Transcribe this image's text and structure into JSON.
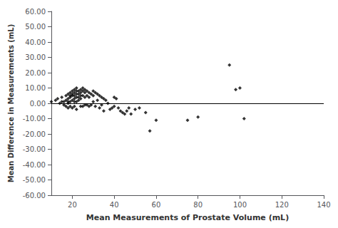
{
  "chart_data": {
    "type": "scatter",
    "xlabel": "Mean Measurements of Prostate Volume (mL)",
    "ylabel": "Mean Difference in Measurements (mL)",
    "x": [
      10,
      12,
      13,
      14,
      15,
      15,
      16,
      16,
      17,
      17,
      17,
      18,
      18,
      18,
      18,
      18,
      19,
      19,
      19,
      19,
      19,
      20,
      20,
      20,
      20,
      20,
      21,
      21,
      21,
      21,
      21,
      21,
      22,
      22,
      22,
      22,
      22,
      22,
      23,
      23,
      23,
      23,
      24,
      24,
      24,
      24,
      24,
      25,
      25,
      25,
      25,
      26,
      26,
      26,
      26,
      27,
      27,
      27,
      28,
      28,
      28,
      29,
      29,
      30,
      30,
      30,
      31,
      31,
      32,
      32,
      33,
      33,
      34,
      34,
      35,
      35,
      36,
      37,
      38,
      39,
      40,
      40,
      41,
      42,
      43,
      44,
      45,
      46,
      47,
      48,
      50,
      52,
      55,
      57,
      60,
      75,
      80,
      95,
      98,
      100,
      102
    ],
    "values": [
      1,
      2,
      3,
      0,
      4,
      1,
      1,
      -1,
      5,
      2,
      -2,
      6,
      3,
      1,
      0,
      -3,
      7,
      5,
      4,
      1,
      -2,
      8,
      6,
      5,
      2,
      -3,
      9,
      7,
      5,
      3,
      1,
      -2,
      10,
      8,
      6,
      4,
      1,
      -4,
      8,
      6,
      4,
      2,
      9,
      7,
      5,
      3,
      -2,
      10,
      8,
      5,
      -2,
      9,
      7,
      4,
      -1,
      8,
      5,
      -1,
      7,
      4,
      -2,
      6,
      -1,
      8,
      5,
      1,
      7,
      -2,
      6,
      2,
      5,
      -3,
      4,
      -1,
      3,
      -5,
      2,
      0,
      -4,
      -3,
      4,
      -2,
      3,
      -3,
      -5,
      -6,
      -7,
      -5,
      -3,
      -7,
      -4,
      -3,
      -6,
      -18,
      -11,
      -11,
      -9,
      25,
      9,
      10,
      -10
    ],
    "color": "black",
    "marker": "diamond",
    "xlim": [
      10,
      140
    ],
    "ylim": [
      -60,
      60
    ],
    "xticks": [
      20,
      40,
      60,
      80,
      100,
      120,
      140
    ],
    "yticks": [
      {
        "value": -60,
        "label": "-60.00"
      },
      {
        "value": -50,
        "label": "-50.00"
      },
      {
        "value": -40,
        "label": "-40.00"
      },
      {
        "value": -30,
        "label": "-30.00"
      },
      {
        "value": -20,
        "label": "-20.00"
      },
      {
        "value": -10,
        "label": "-10.00"
      },
      {
        "value": 0,
        "label": "0.00"
      },
      {
        "value": 10,
        "label": "10.00"
      },
      {
        "value": 20,
        "label": "20.00"
      },
      {
        "value": 30,
        "label": "30.00"
      },
      {
        "value": 40,
        "label": "40.00"
      },
      {
        "value": 50,
        "label": "50.00"
      },
      {
        "value": 60,
        "label": "60.00"
      }
    ],
    "grid": false,
    "hline": {
      "y": 0,
      "color": "black"
    }
  }
}
